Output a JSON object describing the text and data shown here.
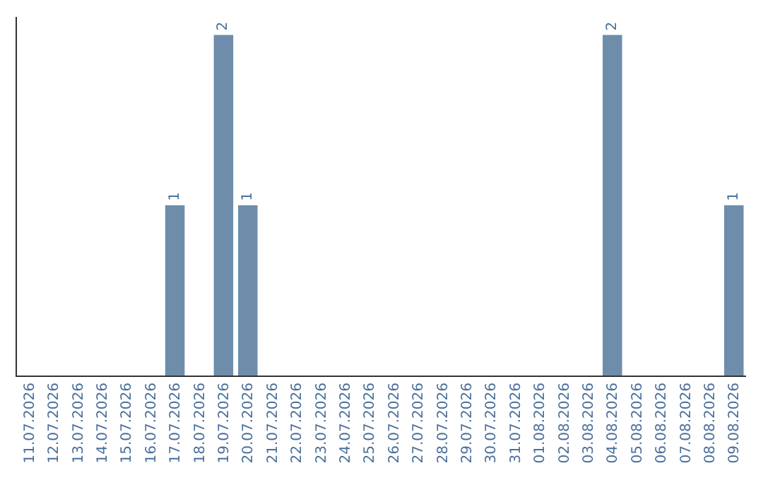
{
  "chart_data": {
    "type": "bar",
    "categories": [
      "11.07.2026",
      "12.07.2026",
      "13.07.2026",
      "14.07.2026",
      "15.07.2026",
      "16.07.2026",
      "17.07.2026",
      "18.07.2026",
      "19.07.2026",
      "20.07.2026",
      "21.07.2026",
      "22.07.2026",
      "23.07.2026",
      "24.07.2026",
      "25.07.2026",
      "26.07.2026",
      "27.07.2026",
      "28.07.2026",
      "29.07.2026",
      "30.07.2026",
      "31.07.2026",
      "01.08.2026",
      "02.08.2026",
      "03.08.2026",
      "04.08.2026",
      "05.08.2026",
      "06.08.2026",
      "07.08.2026",
      "08.08.2026",
      "09.08.2026"
    ],
    "values": [
      0,
      0,
      0,
      0,
      0,
      0,
      1,
      0,
      2,
      1,
      0,
      0,
      0,
      0,
      0,
      0,
      0,
      0,
      0,
      0,
      0,
      0,
      0,
      0,
      2,
      0,
      0,
      0,
      0,
      1
    ],
    "value_labels": [
      null,
      null,
      null,
      null,
      null,
      null,
      "1",
      null,
      "2",
      "1",
      null,
      null,
      null,
      null,
      null,
      null,
      null,
      null,
      null,
      null,
      null,
      null,
      null,
      null,
      "2",
      null,
      null,
      null,
      null,
      "1"
    ],
    "color": "#6e8dab",
    "tick_labels": "x"
  }
}
